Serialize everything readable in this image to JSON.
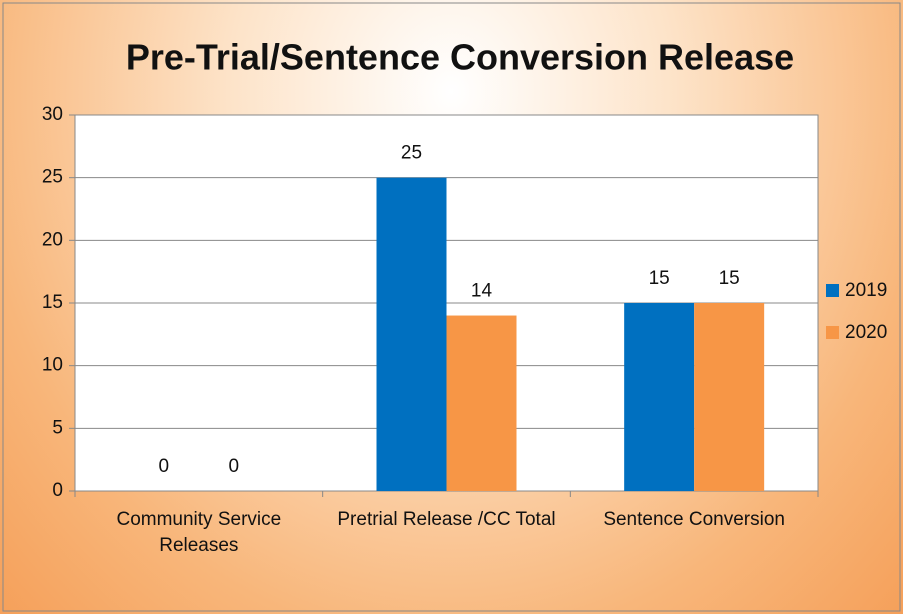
{
  "chart_data": {
    "type": "bar",
    "title": "Pre-Trial/Sentence Conversion Release",
    "categories": [
      "Community Service Releases",
      "Pretrial Release /CC Total",
      "Sentence Conversion"
    ],
    "series": [
      {
        "name": "2019",
        "color": "#0070c0",
        "values": [
          0,
          25,
          15
        ]
      },
      {
        "name": "2020",
        "color": "#f79646",
        "values": [
          0,
          14,
          15
        ]
      }
    ],
    "ylim": [
      0,
      30
    ],
    "yticks": [
      0,
      5,
      10,
      15,
      20,
      25,
      30
    ],
    "grid": true,
    "legend": "right"
  }
}
